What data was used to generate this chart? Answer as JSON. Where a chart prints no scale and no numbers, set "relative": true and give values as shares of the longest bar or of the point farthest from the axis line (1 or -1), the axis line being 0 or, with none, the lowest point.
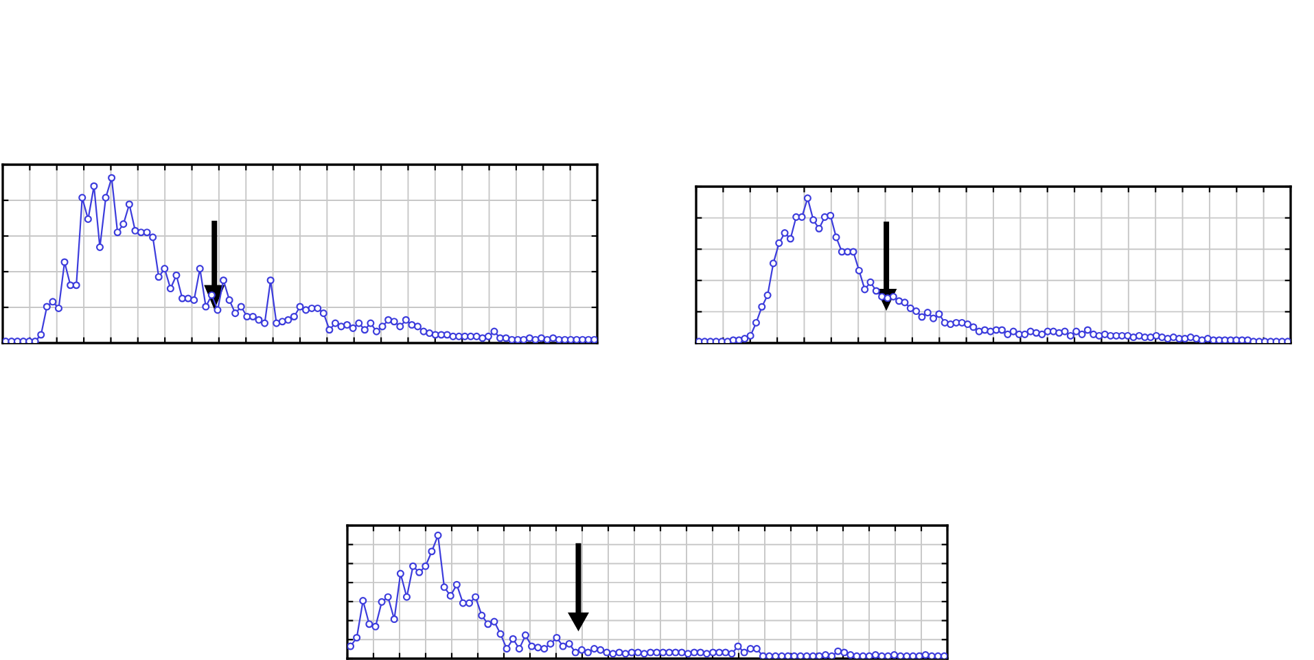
{
  "chart_data": [
    {
      "type": "line",
      "relative": true,
      "grid": true,
      "marker": "circle",
      "line_style": "solid",
      "tick_labels": false,
      "series": [
        {
          "color": "#3c3cdc",
          "values": [
            0.01,
            0.01,
            0.01,
            0.01,
            0.01,
            0.01,
            0.05,
            0.22,
            0.25,
            0.21,
            0.49,
            0.35,
            0.35,
            0.88,
            0.75,
            0.95,
            0.58,
            0.88,
            1.0,
            0.67,
            0.72,
            0.84,
            0.68,
            0.67,
            0.67,
            0.64,
            0.4,
            0.45,
            0.33,
            0.41,
            0.27,
            0.27,
            0.26,
            0.45,
            0.22,
            0.29,
            0.2,
            0.38,
            0.26,
            0.18,
            0.22,
            0.16,
            0.16,
            0.14,
            0.12,
            0.38,
            0.12,
            0.13,
            0.14,
            0.16,
            0.22,
            0.2,
            0.21,
            0.21,
            0.18,
            0.08,
            0.12,
            0.1,
            0.11,
            0.09,
            0.12,
            0.08,
            0.12,
            0.07,
            0.1,
            0.14,
            0.13,
            0.1,
            0.14,
            0.11,
            0.1,
            0.07,
            0.06,
            0.05,
            0.05,
            0.05,
            0.04,
            0.04,
            0.04,
            0.04,
            0.04,
            0.03,
            0.04,
            0.07,
            0.03,
            0.03,
            0.02,
            0.02,
            0.02,
            0.03,
            0.02,
            0.03,
            0.02,
            0.03,
            0.02,
            0.02,
            0.02,
            0.02,
            0.02,
            0.02,
            0.02
          ]
        }
      ]
    },
    {
      "type": "line",
      "relative": true,
      "grid": true,
      "marker": "circle",
      "line_style": "solid",
      "tick_labels": false,
      "series": [
        {
          "color": "#3c3cdc",
          "values": [
            0.01,
            0.01,
            0.01,
            0.01,
            0.01,
            0.01,
            0.02,
            0.02,
            0.03,
            0.05,
            0.14,
            0.25,
            0.33,
            0.55,
            0.69,
            0.76,
            0.72,
            0.87,
            0.87,
            1.0,
            0.85,
            0.79,
            0.87,
            0.88,
            0.73,
            0.63,
            0.63,
            0.63,
            0.5,
            0.37,
            0.42,
            0.36,
            0.32,
            0.31,
            0.32,
            0.29,
            0.28,
            0.24,
            0.22,
            0.18,
            0.21,
            0.17,
            0.2,
            0.14,
            0.13,
            0.14,
            0.14,
            0.13,
            0.11,
            0.08,
            0.09,
            0.08,
            0.09,
            0.09,
            0.06,
            0.08,
            0.06,
            0.06,
            0.08,
            0.07,
            0.06,
            0.08,
            0.08,
            0.07,
            0.08,
            0.05,
            0.08,
            0.06,
            0.09,
            0.06,
            0.05,
            0.06,
            0.05,
            0.05,
            0.05,
            0.05,
            0.04,
            0.05,
            0.04,
            0.04,
            0.05,
            0.04,
            0.03,
            0.04,
            0.03,
            0.03,
            0.04,
            0.03,
            0.02,
            0.03,
            0.02,
            0.02,
            0.02,
            0.02,
            0.02,
            0.02,
            0.02,
            0.01,
            0.01,
            0.01,
            0.01,
            0.01,
            0.01,
            0.01
          ]
        }
      ]
    },
    {
      "type": "line",
      "relative": true,
      "grid": true,
      "marker": "circle",
      "line_style": "solid",
      "tick_labels": false,
      "series": [
        {
          "color": "#3c3cdc",
          "values": [
            0.1,
            0.17,
            0.47,
            0.28,
            0.26,
            0.46,
            0.5,
            0.32,
            0.69,
            0.5,
            0.75,
            0.7,
            0.75,
            0.87,
            1.0,
            0.58,
            0.51,
            0.6,
            0.45,
            0.45,
            0.5,
            0.35,
            0.28,
            0.3,
            0.2,
            0.08,
            0.16,
            0.08,
            0.19,
            0.1,
            0.09,
            0.08,
            0.12,
            0.17,
            0.1,
            0.12,
            0.05,
            0.07,
            0.05,
            0.08,
            0.07,
            0.05,
            0.04,
            0.05,
            0.04,
            0.05,
            0.05,
            0.04,
            0.05,
            0.05,
            0.05,
            0.05,
            0.05,
            0.05,
            0.04,
            0.05,
            0.05,
            0.04,
            0.05,
            0.05,
            0.05,
            0.04,
            0.1,
            0.05,
            0.08,
            0.08,
            0.02,
            0.02,
            0.02,
            0.02,
            0.02,
            0.02,
            0.02,
            0.02,
            0.02,
            0.02,
            0.03,
            0.02,
            0.06,
            0.05,
            0.03,
            0.02,
            0.02,
            0.02,
            0.03,
            0.02,
            0.02,
            0.03,
            0.02,
            0.02,
            0.02,
            0.02,
            0.03,
            0.02,
            0.02,
            0.02
          ]
        }
      ]
    }
  ]
}
